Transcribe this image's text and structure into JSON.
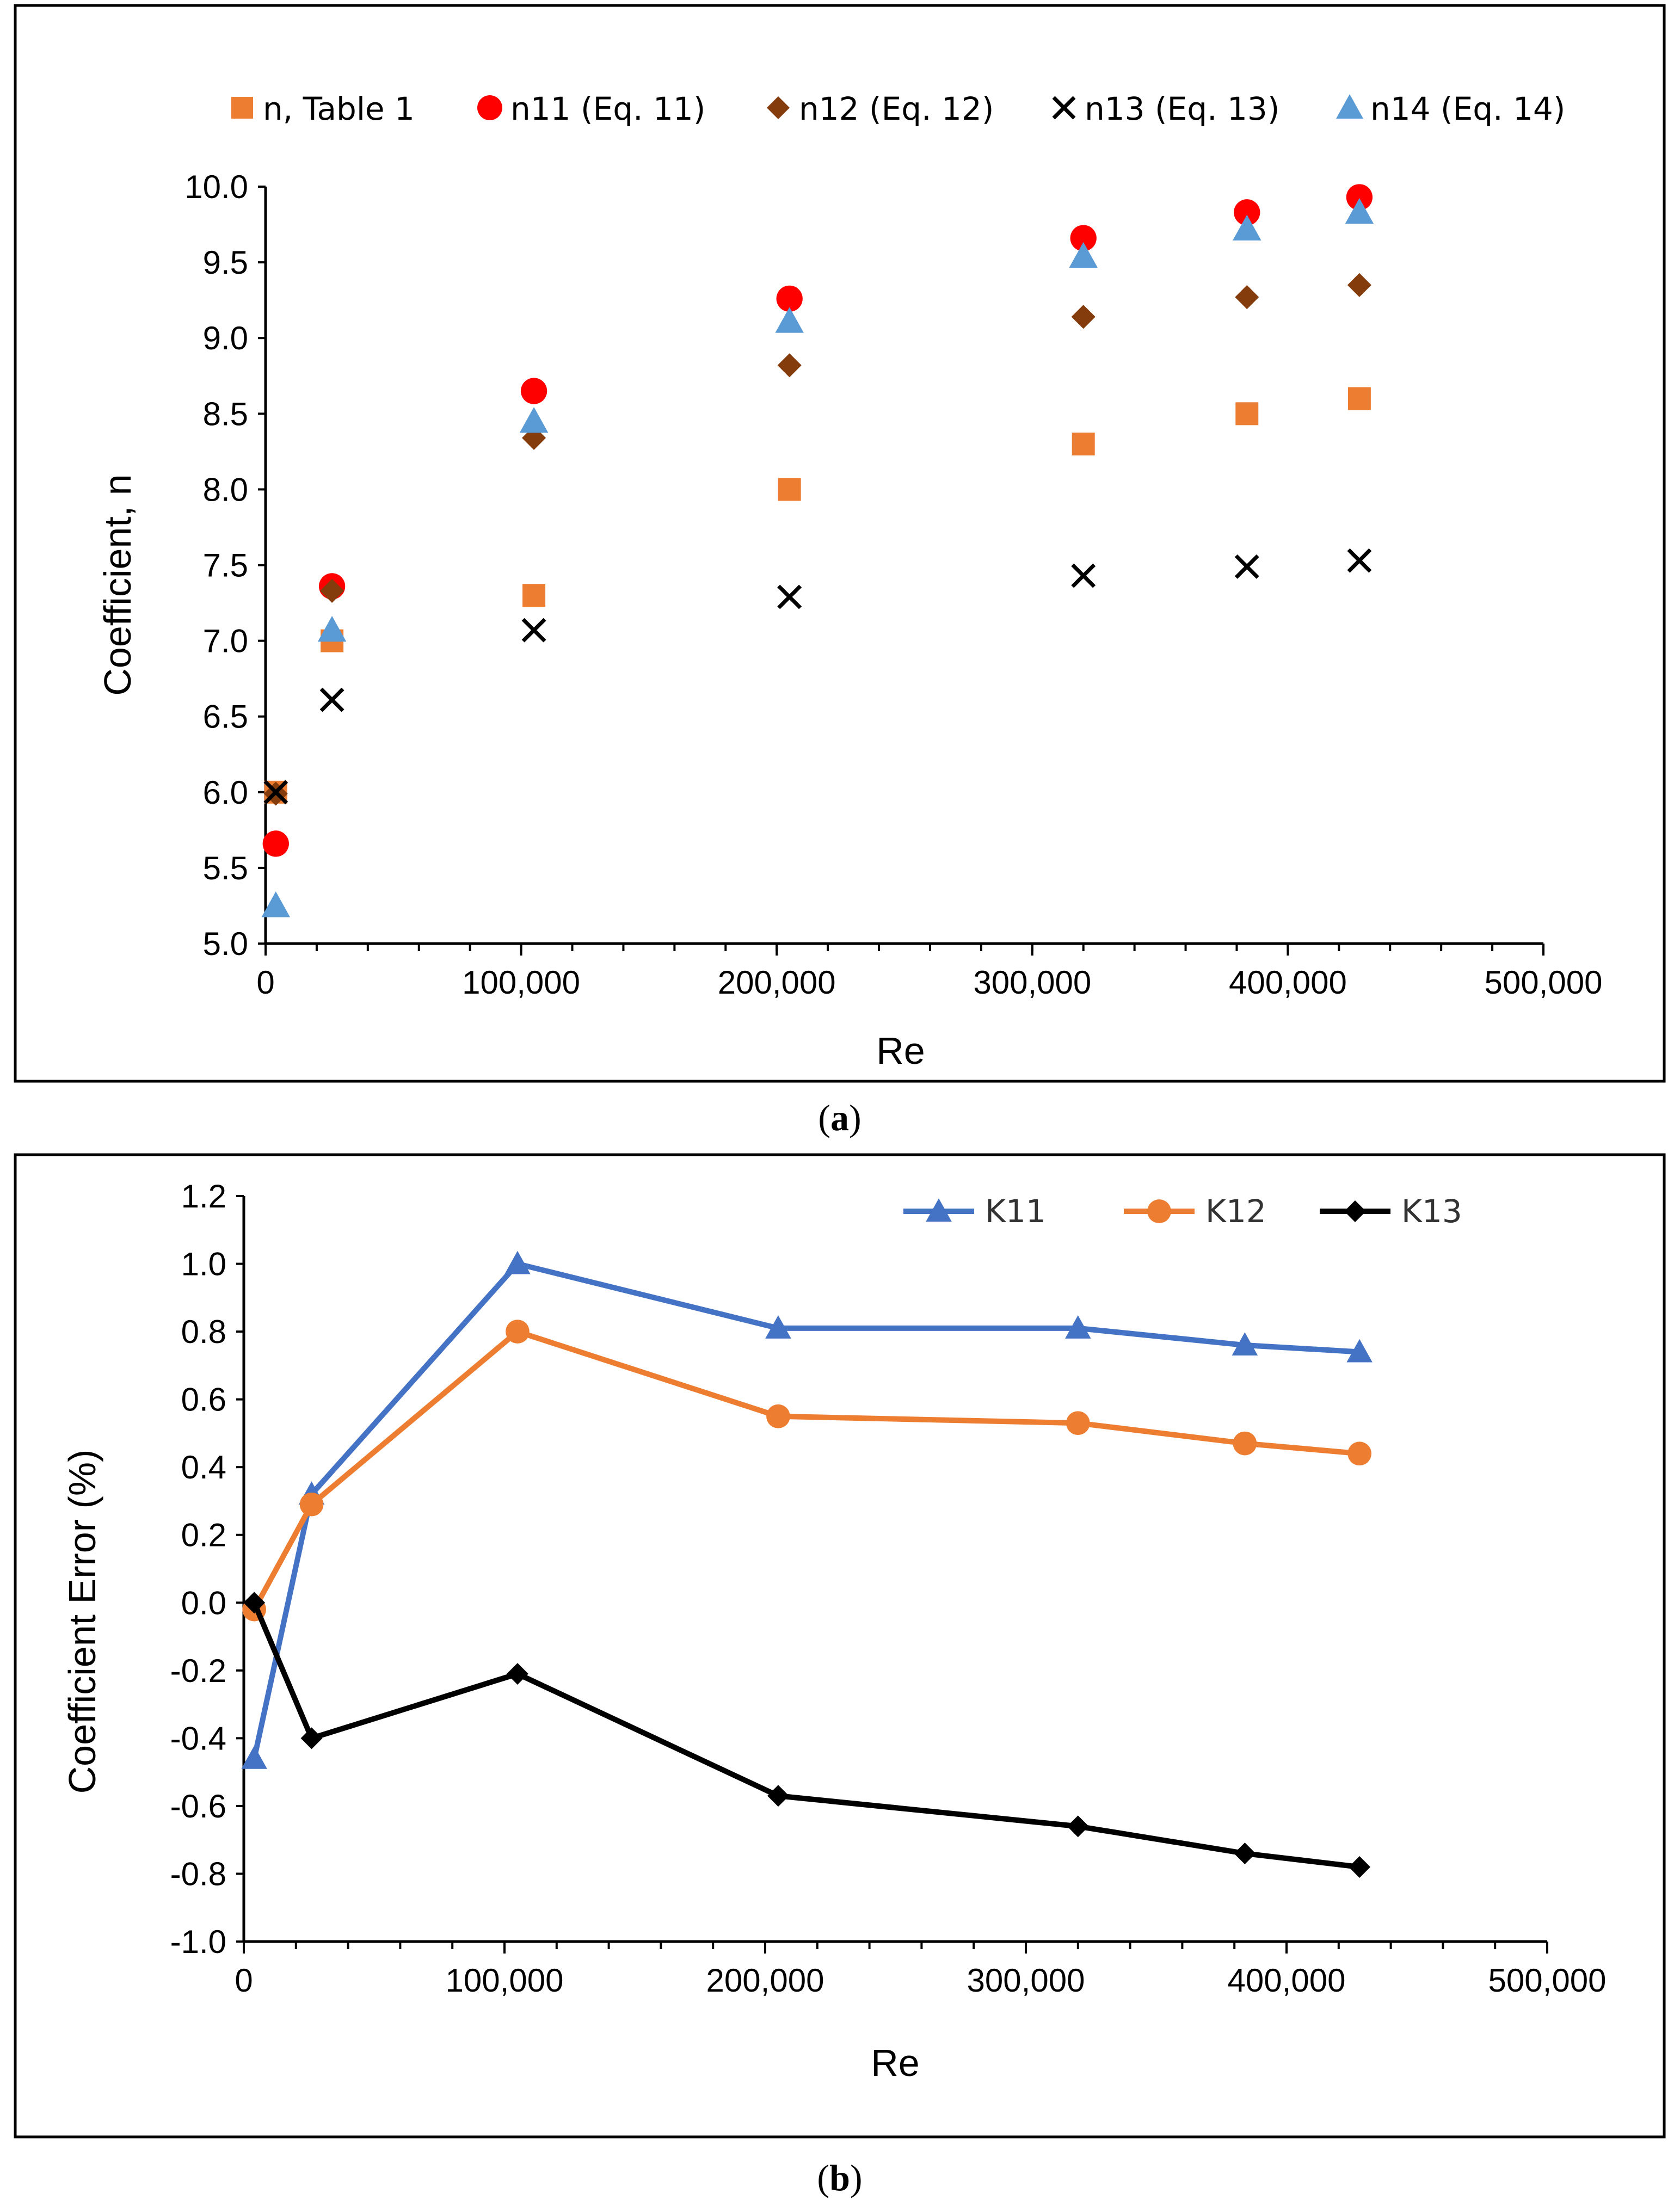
{
  "figure_captions": {
    "a_open": "(",
    "a_letter": "a",
    "a_close": ")",
    "b_open": "(",
    "b_letter": "b",
    "b_close": ")"
  },
  "colors": {
    "table1": "#ED7D31",
    "n11": "#FF0000",
    "n12": "#843C0C",
    "n13": "#000000",
    "n14": "#5B9BD5",
    "K11": "#4472C4",
    "K12": "#ED7D31",
    "K13": "#000000"
  },
  "chart_data": [
    {
      "id": "a",
      "type": "scatter",
      "title": "",
      "xlabel": "Re",
      "ylabel": "Coefficient, n",
      "xlim": [
        0,
        500000
      ],
      "ylim": [
        5.0,
        10.0
      ],
      "x_ticks": [
        0,
        100000,
        200000,
        300000,
        400000,
        500000
      ],
      "x_tick_labels": [
        "0",
        "100,000",
        "200,000",
        "300,000",
        "400,000",
        "500,000"
      ],
      "y_ticks": [
        5.0,
        5.5,
        6.0,
        6.5,
        7.0,
        7.5,
        8.0,
        8.5,
        9.0,
        9.5,
        10.0
      ],
      "y_tick_labels": [
        "5.0",
        "5.5",
        "6.0",
        "6.5",
        "7.0",
        "7.5",
        "8.0",
        "8.5",
        "9.0",
        "9.5",
        "10.0"
      ],
      "grid": false,
      "legend_position": "top",
      "series": [
        {
          "name": "n, Table 1",
          "marker": "square",
          "color": "#ED7D31",
          "x": [
            4000,
            26000,
            105000,
            205000,
            320000,
            384000,
            428000
          ],
          "y": [
            6.0,
            7.0,
            7.3,
            8.0,
            8.3,
            8.5,
            8.6
          ]
        },
        {
          "name": "n11 (Eq. 11)",
          "marker": "circle",
          "color": "#FF0000",
          "x": [
            4000,
            26000,
            105000,
            205000,
            320000,
            384000,
            428000
          ],
          "y": [
            5.66,
            7.36,
            8.65,
            9.26,
            9.66,
            9.83,
            9.93
          ]
        },
        {
          "name": "n12 (Eq. 12)",
          "marker": "diamond",
          "color": "#843C0C",
          "x": [
            4000,
            26000,
            105000,
            205000,
            320000,
            384000,
            428000
          ],
          "y": [
            5.99,
            7.33,
            8.34,
            8.82,
            9.14,
            9.27,
            9.35
          ]
        },
        {
          "name": "n13 (Eq. 13)",
          "marker": "x",
          "color": "#000000",
          "x": [
            4000,
            26000,
            105000,
            205000,
            320000,
            384000,
            428000
          ],
          "y": [
            6.0,
            6.61,
            7.07,
            7.29,
            7.43,
            7.49,
            7.53
          ]
        },
        {
          "name": "n14 (Eq. 14)",
          "marker": "triangle",
          "color": "#5B9BD5",
          "x": [
            4000,
            26000,
            105000,
            205000,
            320000,
            384000,
            428000
          ],
          "y": [
            5.25,
            7.07,
            8.45,
            9.11,
            9.54,
            9.72,
            9.83
          ]
        }
      ]
    },
    {
      "id": "b",
      "type": "line",
      "title": "",
      "xlabel": "Re",
      "ylabel": "Coefficient Error (%)",
      "xlim": [
        0,
        500000
      ],
      "ylim": [
        -1.0,
        1.2
      ],
      "x_ticks": [
        0,
        100000,
        200000,
        300000,
        400000,
        500000
      ],
      "x_tick_labels": [
        "0",
        "100,000",
        "200,000",
        "300,000",
        "400,000",
        "500,000"
      ],
      "y_ticks": [
        -1.0,
        -0.8,
        -0.6,
        -0.4,
        -0.2,
        0.0,
        0.2,
        0.4,
        0.6,
        0.8,
        1.0,
        1.2
      ],
      "y_tick_labels": [
        "-1.0",
        "-0.8",
        "-0.6",
        "-0.4",
        "-0.2",
        "0.0",
        "0.2",
        "0.4",
        "0.6",
        "0.8",
        "1.0",
        "1.2"
      ],
      "grid": false,
      "legend_position": "top-right",
      "series": [
        {
          "name": "K11",
          "marker": "triangle",
          "color": "#4472C4",
          "x": [
            4000,
            26000,
            105000,
            205000,
            320000,
            384000,
            428000
          ],
          "y": [
            -0.46,
            0.32,
            1.0,
            0.81,
            0.81,
            0.76,
            0.74
          ]
        },
        {
          "name": "K12",
          "marker": "circle",
          "color": "#ED7D31",
          "x": [
            4000,
            26000,
            105000,
            205000,
            320000,
            384000,
            428000
          ],
          "y": [
            -0.02,
            0.29,
            0.8,
            0.55,
            0.53,
            0.47,
            0.44
          ]
        },
        {
          "name": "K13",
          "marker": "diamond",
          "color": "#000000",
          "x": [
            4000,
            26000,
            105000,
            205000,
            320000,
            384000,
            428000
          ],
          "y": [
            0.0,
            -0.4,
            -0.21,
            -0.57,
            -0.66,
            -0.74,
            -0.78
          ]
        }
      ]
    }
  ]
}
